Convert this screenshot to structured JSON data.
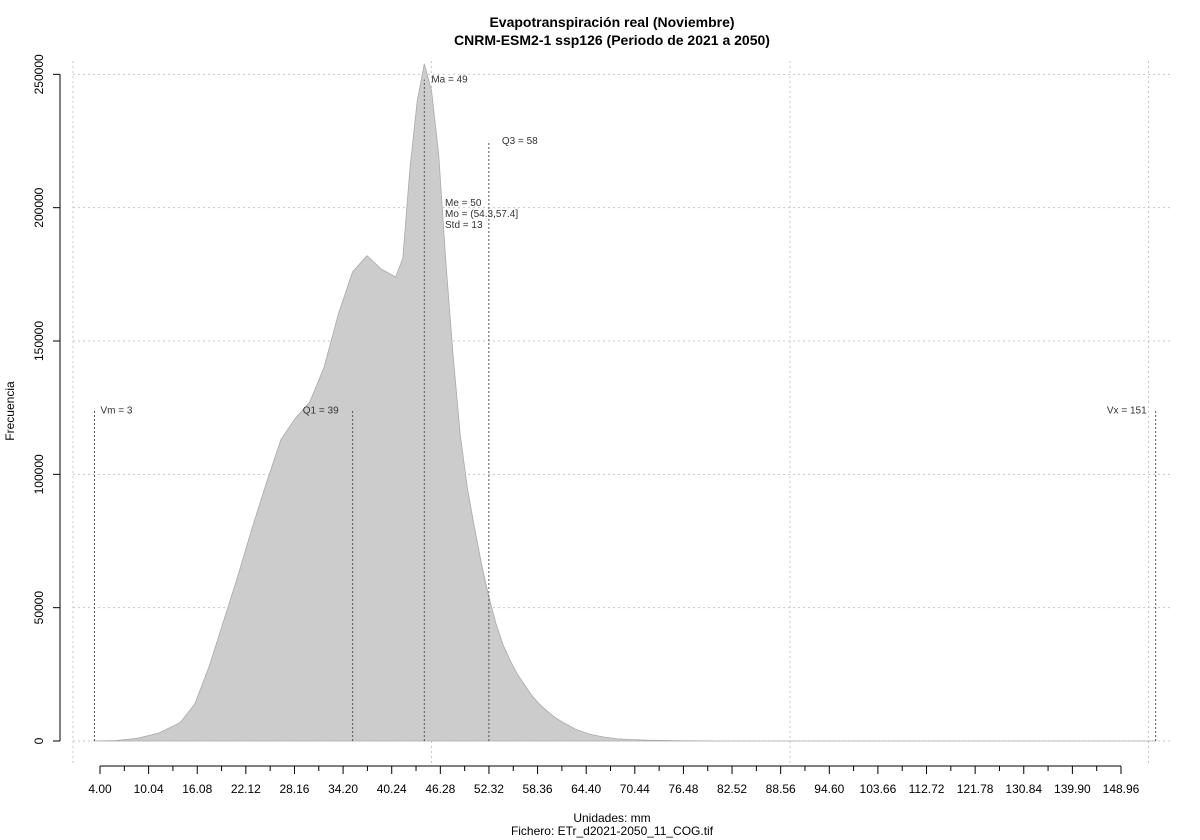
{
  "chart_data": {
    "type": "area",
    "title": "Evapotranspiración real (Noviembre)",
    "subtitle": "CNRM-ESM2-1 ssp126 (Periodo de 2021 a 2050)",
    "xlabel": "Unidades: mm",
    "ylabel": "Frecuencia",
    "footer": "Fichero: ETr_d2021-2050_11_COG.tif",
    "xlim": [
      0,
      153
    ],
    "ylim": [
      0,
      255000
    ],
    "grid": true,
    "x_tick_labels": [
      "4.00",
      "10.04",
      "16.08",
      "22.12",
      "28.16",
      "34.20",
      "40.24",
      "46.28",
      "52.32",
      "58.36",
      "64.40",
      "70.44",
      "76.48",
      "82.52",
      "88.56",
      "94.60",
      "103.66",
      "112.72",
      "121.78",
      "130.84",
      "139.90",
      "148.96"
    ],
    "y_ticks": [
      0,
      50000,
      100000,
      150000,
      200000,
      250000
    ],
    "y_tick_labels": [
      "0",
      "50000",
      "100000",
      "150000",
      "200000",
      "250000"
    ],
    "series": [
      {
        "x": [
          3,
          6,
          9,
          12,
          15,
          17,
          19,
          21,
          23,
          25,
          27,
          29,
          31,
          33,
          35,
          37,
          39,
          41,
          43,
          45,
          46,
          47,
          48,
          49,
          50,
          51,
          52,
          53,
          54,
          55,
          56,
          57,
          58,
          59,
          60,
          61,
          62,
          63,
          64,
          65,
          66,
          67,
          68,
          70,
          72,
          74,
          76,
          80,
          84,
          88,
          92,
          95,
          100,
          110,
          130,
          151
        ],
        "y": [
          0,
          200,
          1000,
          3000,
          7000,
          14000,
          28000,
          45000,
          62000,
          80000,
          97000,
          113000,
          121000,
          127000,
          140000,
          160000,
          176000,
          182000,
          177000,
          174000,
          181000,
          215000,
          240000,
          254000,
          244000,
          220000,
          180000,
          145000,
          115000,
          95000,
          80000,
          66000,
          54000,
          44000,
          36000,
          30000,
          25000,
          21000,
          17000,
          14000,
          11500,
          9300,
          7500,
          4500,
          2600,
          1500,
          800,
          300,
          100,
          30,
          10,
          5,
          0,
          0,
          0,
          0
        ]
      }
    ],
    "annotations": {
      "vm": {
        "label": "Vm = 3",
        "x": 3,
        "y": 124000
      },
      "q1": {
        "label": "Q1 = 39",
        "x": 39,
        "y": 124000
      },
      "ma": {
        "label": "Ma = 49",
        "x": 49,
        "y": 248000
      },
      "q3": {
        "label": "Q3 = 58",
        "x": 58,
        "y": 225000
      },
      "vx": {
        "label": "Vx = 151",
        "x": 151,
        "y": 124000
      },
      "stats": [
        "Me = 50",
        "Mo = (54.3,57.4]",
        "Std = 13"
      ]
    }
  }
}
